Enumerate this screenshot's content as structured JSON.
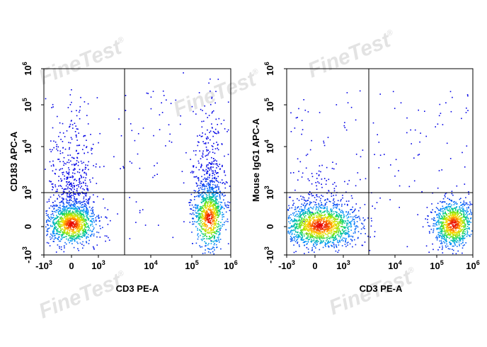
{
  "watermark": {
    "text": "FineTest",
    "mark": "®"
  },
  "chart_data": [
    {
      "type": "scatter",
      "subtype": "flow-cytometry-density-dot-plot",
      "xlabel": "CD3 PE-A",
      "ylabel": "CD183 APC-A",
      "scale": "biexponential",
      "x_ticks": [
        {
          "base": "-10",
          "exp": "3"
        },
        {
          "base": "0",
          "exp": ""
        },
        {
          "base": "10",
          "exp": "3"
        },
        {
          "base": "10",
          "exp": "4"
        },
        {
          "base": "10",
          "exp": "5"
        },
        {
          "base": "10",
          "exp": "6"
        }
      ],
      "y_ticks": [
        {
          "base": "-10",
          "exp": "3"
        },
        {
          "base": "0",
          "exp": ""
        },
        {
          "base": "10",
          "exp": "3"
        },
        {
          "base": "10",
          "exp": "4"
        },
        {
          "base": "10",
          "exp": "5"
        },
        {
          "base": "10",
          "exp": "6"
        }
      ],
      "gate": {
        "x": 3000,
        "y": 1200
      },
      "populations": [
        {
          "x": 100,
          "y": 50,
          "density": "high",
          "extent": "dense cluster near origin, spread up to ~10^4 on y"
        },
        {
          "x": 200000,
          "y": 60,
          "density": "high",
          "extent": "cluster spreading from 0 to ~10^4 on y"
        }
      ]
    },
    {
      "type": "scatter",
      "subtype": "flow-cytometry-density-dot-plot",
      "xlabel": "CD3 PE-A",
      "ylabel": "Mouse IgG1 APC-A",
      "scale": "biexponential",
      "x_ticks": [
        {
          "base": "-10",
          "exp": "3"
        },
        {
          "base": "0",
          "exp": ""
        },
        {
          "base": "10",
          "exp": "3"
        },
        {
          "base": "10",
          "exp": "4"
        },
        {
          "base": "10",
          "exp": "5"
        },
        {
          "base": "10",
          "exp": "6"
        }
      ],
      "y_ticks": [
        {
          "base": "-10",
          "exp": "3"
        },
        {
          "base": "0",
          "exp": ""
        },
        {
          "base": "10",
          "exp": "3"
        },
        {
          "base": "10",
          "exp": "4"
        },
        {
          "base": "10",
          "exp": "5"
        },
        {
          "base": "10",
          "exp": "6"
        }
      ],
      "gate": {
        "x": 3000,
        "y": 1200
      },
      "populations": [
        {
          "x": 100,
          "y": 30,
          "density": "high",
          "extent": "dense cluster near origin, wide spread"
        },
        {
          "x": 200000,
          "y": 30,
          "density": "high",
          "extent": "compact cluster below y gate"
        }
      ]
    }
  ]
}
